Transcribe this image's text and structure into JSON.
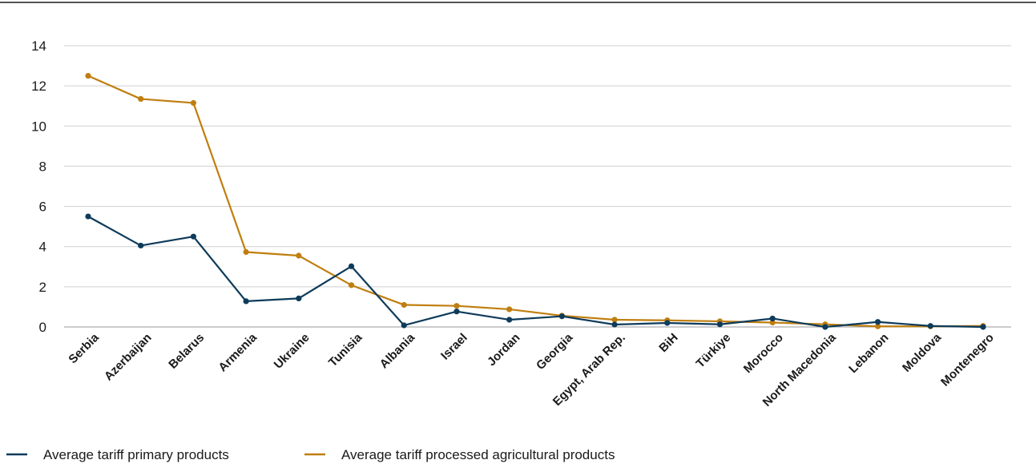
{
  "chart_data": {
    "type": "line",
    "title": "",
    "xlabel": "",
    "ylabel": "",
    "ylim": [
      0,
      14
    ],
    "yticks": [
      0,
      2,
      4,
      6,
      8,
      10,
      12,
      14
    ],
    "grid": true,
    "legend_position": "bottom-left",
    "categories": [
      "Serbia",
      "Azerbaijan",
      "Belarus",
      "Armenia",
      "Ukraine",
      "Tunisia",
      "Albania",
      "Israel",
      "Jordan",
      "Georgia",
      "Egypt, Arab Rep.",
      "BiH",
      "Türkiye",
      "Morocco",
      "North Macedonia",
      "Lebanon",
      "Moldova",
      "Montenegro"
    ],
    "series": [
      {
        "name": "Average tariff primary products",
        "color": "#0e3b5a",
        "values": [
          5.5,
          4.05,
          4.5,
          1.28,
          1.42,
          3.02,
          0.08,
          0.77,
          0.36,
          0.53,
          0.12,
          0.2,
          0.13,
          0.42,
          0.0,
          0.25,
          0.05,
          0.0
        ]
      },
      {
        "name": "Average tariff processed agricultural products",
        "color": "#c07e10",
        "values": [
          12.5,
          11.35,
          11.15,
          3.73,
          3.55,
          2.08,
          1.1,
          1.05,
          0.88,
          0.56,
          0.36,
          0.33,
          0.28,
          0.22,
          0.13,
          0.03,
          0.03,
          0.05
        ]
      }
    ]
  }
}
